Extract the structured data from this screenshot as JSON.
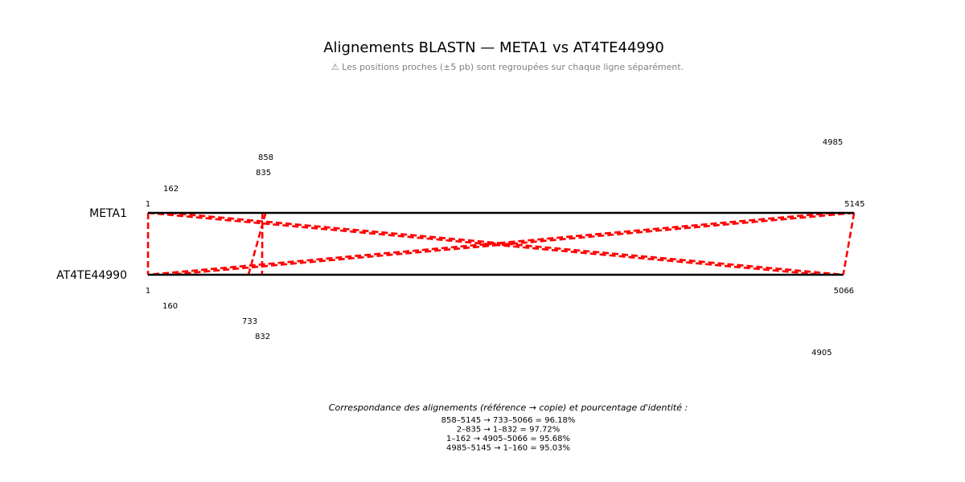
{
  "chart_data": {
    "type": "alignment",
    "title": "Alignements BLASTN — META1 vs AT4TE44990",
    "subtitle": "⚠ Les positions proches (±5 pb) sont regroupées sur chaque ligne séparément.",
    "tracks": {
      "reference": {
        "name": "META1",
        "length": 5145
      },
      "query": {
        "name": "AT4TE44990",
        "length": 5066
      }
    },
    "alignments": [
      {
        "ref": [
          858,
          5145
        ],
        "query": [
          733,
          5066
        ],
        "identity": "96.18%"
      },
      {
        "ref": [
          2,
          835
        ],
        "query": [
          1,
          832
        ],
        "identity": "97.72%"
      },
      {
        "ref": [
          1,
          162
        ],
        "query": [
          4905,
          5066
        ],
        "identity": "95.68%"
      },
      {
        "ref": [
          4985,
          5145
        ],
        "query": [
          1,
          160
        ],
        "identity": "95.03%"
      }
    ],
    "reference_labels": [
      "1",
      "162",
      "835",
      "858",
      "4985",
      "5145"
    ],
    "query_labels": [
      "1",
      "160",
      "733",
      "832",
      "4905",
      "5066"
    ],
    "line_color": "#ff0000",
    "track_color": "#000000",
    "legend": {
      "title": "Correspondance des alignements (référence → copie) et pourcentage d'identité :",
      "lines": [
        "858–5145 → 733–5066 = 96.18%",
        "2–835 → 1–832 = 97.72%",
        "1–162 → 4905–5066 = 95.68%",
        "4985–5145 → 1–160 = 95.03%"
      ]
    }
  }
}
